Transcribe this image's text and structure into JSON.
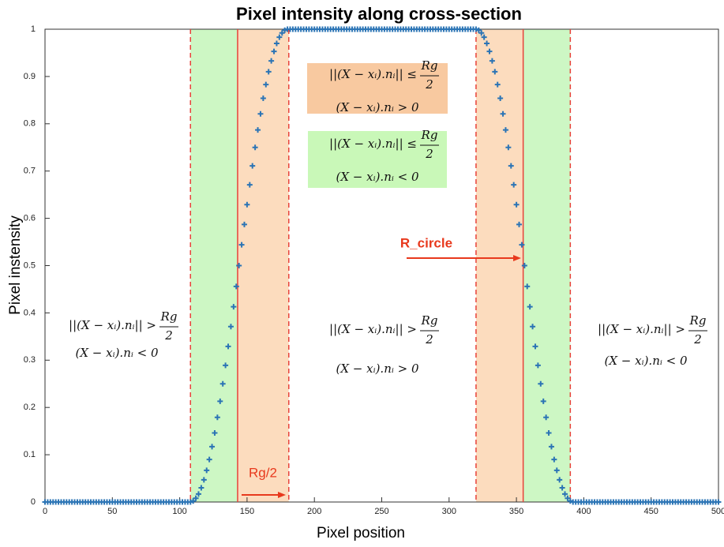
{
  "chart_data": {
    "type": "scatter",
    "title": "Pixel intensity along cross-section",
    "xlabel": "Pixel position",
    "ylabel": "Pixel instensity",
    "xlim": [
      0,
      500
    ],
    "ylim": [
      0,
      1
    ],
    "xticks": [
      0,
      50,
      100,
      150,
      200,
      250,
      300,
      350,
      400,
      450,
      500
    ],
    "yticks": [
      0,
      0.1,
      0.2,
      0.3,
      0.4,
      0.5,
      0.6,
      0.7,
      0.8,
      0.9,
      1
    ],
    "color": "#2b74b5",
    "x": [
      0,
      2,
      4,
      6,
      8,
      10,
      12,
      14,
      16,
      18,
      20,
      22,
      24,
      26,
      28,
      30,
      32,
      34,
      36,
      38,
      40,
      42,
      44,
      46,
      48,
      50,
      52,
      54,
      56,
      58,
      60,
      62,
      64,
      66,
      68,
      70,
      72,
      74,
      76,
      78,
      80,
      82,
      84,
      86,
      88,
      90,
      92,
      94,
      96,
      98,
      100,
      102,
      104,
      106,
      108,
      110,
      112,
      114,
      116,
      118,
      120,
      122,
      124,
      126,
      128,
      130,
      132,
      134,
      136,
      138,
      140,
      142,
      144,
      146,
      148,
      150,
      152,
      154,
      156,
      158,
      160,
      162,
      164,
      166,
      168,
      170,
      172,
      174,
      176,
      178,
      180,
      182,
      184,
      186,
      188,
      190,
      192,
      194,
      196,
      198,
      200,
      202,
      204,
      206,
      208,
      210,
      212,
      214,
      216,
      218,
      220,
      222,
      224,
      226,
      228,
      230,
      232,
      234,
      236,
      238,
      240,
      242,
      244,
      246,
      248,
      250,
      252,
      254,
      256,
      258,
      260,
      262,
      264,
      266,
      268,
      270,
      272,
      274,
      276,
      278,
      280,
      282,
      284,
      286,
      288,
      290,
      292,
      294,
      296,
      298,
      300,
      302,
      304,
      306,
      308,
      310,
      312,
      314,
      316,
      318,
      320,
      322,
      324,
      326,
      328,
      330,
      332,
      334,
      336,
      338,
      340,
      342,
      344,
      346,
      348,
      350,
      352,
      354,
      356,
      358,
      360,
      362,
      364,
      366,
      368,
      370,
      372,
      374,
      376,
      378,
      380,
      382,
      384,
      386,
      388,
      390,
      392,
      394,
      396,
      398,
      400,
      402,
      404,
      406,
      408,
      410,
      412,
      414,
      416,
      418,
      420,
      422,
      424,
      426,
      428,
      430,
      432,
      434,
      436,
      438,
      440,
      442,
      444,
      446,
      448,
      450,
      452,
      454,
      456,
      458,
      460,
      462,
      464,
      466,
      468,
      470,
      472,
      474,
      476,
      478,
      480,
      482,
      484,
      486,
      488,
      490,
      492,
      494,
      496,
      498,
      500
    ],
    "values": [
      0,
      0,
      0,
      0,
      0,
      0,
      0,
      0,
      0,
      0,
      0,
      0,
      0,
      0,
      0,
      0,
      0,
      0,
      0,
      0,
      0,
      0,
      0,
      0,
      0,
      0,
      0,
      0,
      0,
      0,
      0,
      0,
      0,
      0,
      0,
      0,
      0,
      0,
      0,
      0,
      0,
      0,
      0,
      0,
      0,
      0,
      0,
      0,
      0,
      0,
      0,
      0,
      0,
      0,
      0,
      0.002,
      0.008,
      0.017,
      0.03,
      0.047,
      0.067,
      0.09,
      0.117,
      0.146,
      0.179,
      0.213,
      0.25,
      0.289,
      0.329,
      0.371,
      0.413,
      0.456,
      0.5,
      0.544,
      0.587,
      0.629,
      0.671,
      0.711,
      0.75,
      0.787,
      0.821,
      0.854,
      0.883,
      0.91,
      0.933,
      0.953,
      0.97,
      0.983,
      0.992,
      0.998,
      1,
      1,
      1,
      1,
      1,
      1,
      1,
      1,
      1,
      1,
      1,
      1,
      1,
      1,
      1,
      1,
      1,
      1,
      1,
      1,
      1,
      1,
      1,
      1,
      1,
      1,
      1,
      1,
      1,
      1,
      1,
      1,
      1,
      1,
      1,
      1,
      1,
      1,
      1,
      1,
      1,
      1,
      1,
      1,
      1,
      1,
      1,
      1,
      1,
      1,
      1,
      1,
      1,
      1,
      1,
      1,
      1,
      1,
      1,
      1,
      1,
      1,
      1,
      1,
      1,
      1,
      1,
      1,
      1,
      1,
      1,
      0.998,
      0.992,
      0.983,
      0.97,
      0.953,
      0.933,
      0.91,
      0.883,
      0.854,
      0.821,
      0.787,
      0.75,
      0.711,
      0.671,
      0.629,
      0.587,
      0.544,
      0.5,
      0.456,
      0.413,
      0.371,
      0.329,
      0.289,
      0.25,
      0.213,
      0.179,
      0.146,
      0.117,
      0.09,
      0.067,
      0.047,
      0.03,
      0.017,
      0.008,
      0.002,
      0,
      0,
      0,
      0,
      0,
      0,
      0,
      0,
      0,
      0,
      0,
      0,
      0,
      0,
      0,
      0,
      0,
      0,
      0,
      0,
      0,
      0,
      0,
      0,
      0,
      0,
      0,
      0,
      0,
      0,
      0,
      0,
      0,
      0,
      0,
      0,
      0,
      0,
      0,
      0,
      0,
      0,
      0,
      0,
      0,
      0,
      0,
      0,
      0,
      0,
      0,
      0,
      0,
      0,
      0
    ],
    "shaded_regions": [
      {
        "x0": 108,
        "x1": 143,
        "color": "#cdf7c4"
      },
      {
        "x0": 143,
        "x1": 181,
        "color": "#fcdcbe"
      },
      {
        "x0": 320,
        "x1": 355,
        "color": "#fcdcbe"
      },
      {
        "x0": 355,
        "x1": 390,
        "color": "#cdf7c4"
      }
    ],
    "dashed_lines": [
      108,
      181,
      320,
      390
    ],
    "solid_lines": [
      143,
      355
    ],
    "line_color": "#e8423a",
    "annotations": [
      {
        "lhs": "||(X − xᵢ).nᵢ|| ≤",
        "num": "Rg",
        "den": "2",
        "cond": "(X − xᵢ).nᵢ > 0",
        "box": "#f8c9a0"
      },
      {
        "lhs": "||(X − xᵢ).nᵢ|| ≤",
        "num": "Rg",
        "den": "2",
        "cond": "(X − xᵢ).nᵢ < 0",
        "box": "#c9f8b8"
      },
      {
        "lhs": "||(X − xᵢ).nᵢ|| >",
        "num": "Rg",
        "den": "2",
        "cond": "(X − xᵢ).nᵢ < 0"
      },
      {
        "lhs": "||(X − xᵢ).nᵢ|| >",
        "num": "Rg",
        "den": "2",
        "cond": "(X − xᵢ).nᵢ > 0"
      },
      {
        "lhs": "||(X − xᵢ).nᵢ|| >",
        "num": "Rg",
        "den": "2",
        "cond": "(X − xᵢ).nᵢ < 0"
      }
    ],
    "arrow_labels": [
      "Rg/2",
      "R_circle"
    ],
    "arrow_color": "#e8391d"
  }
}
